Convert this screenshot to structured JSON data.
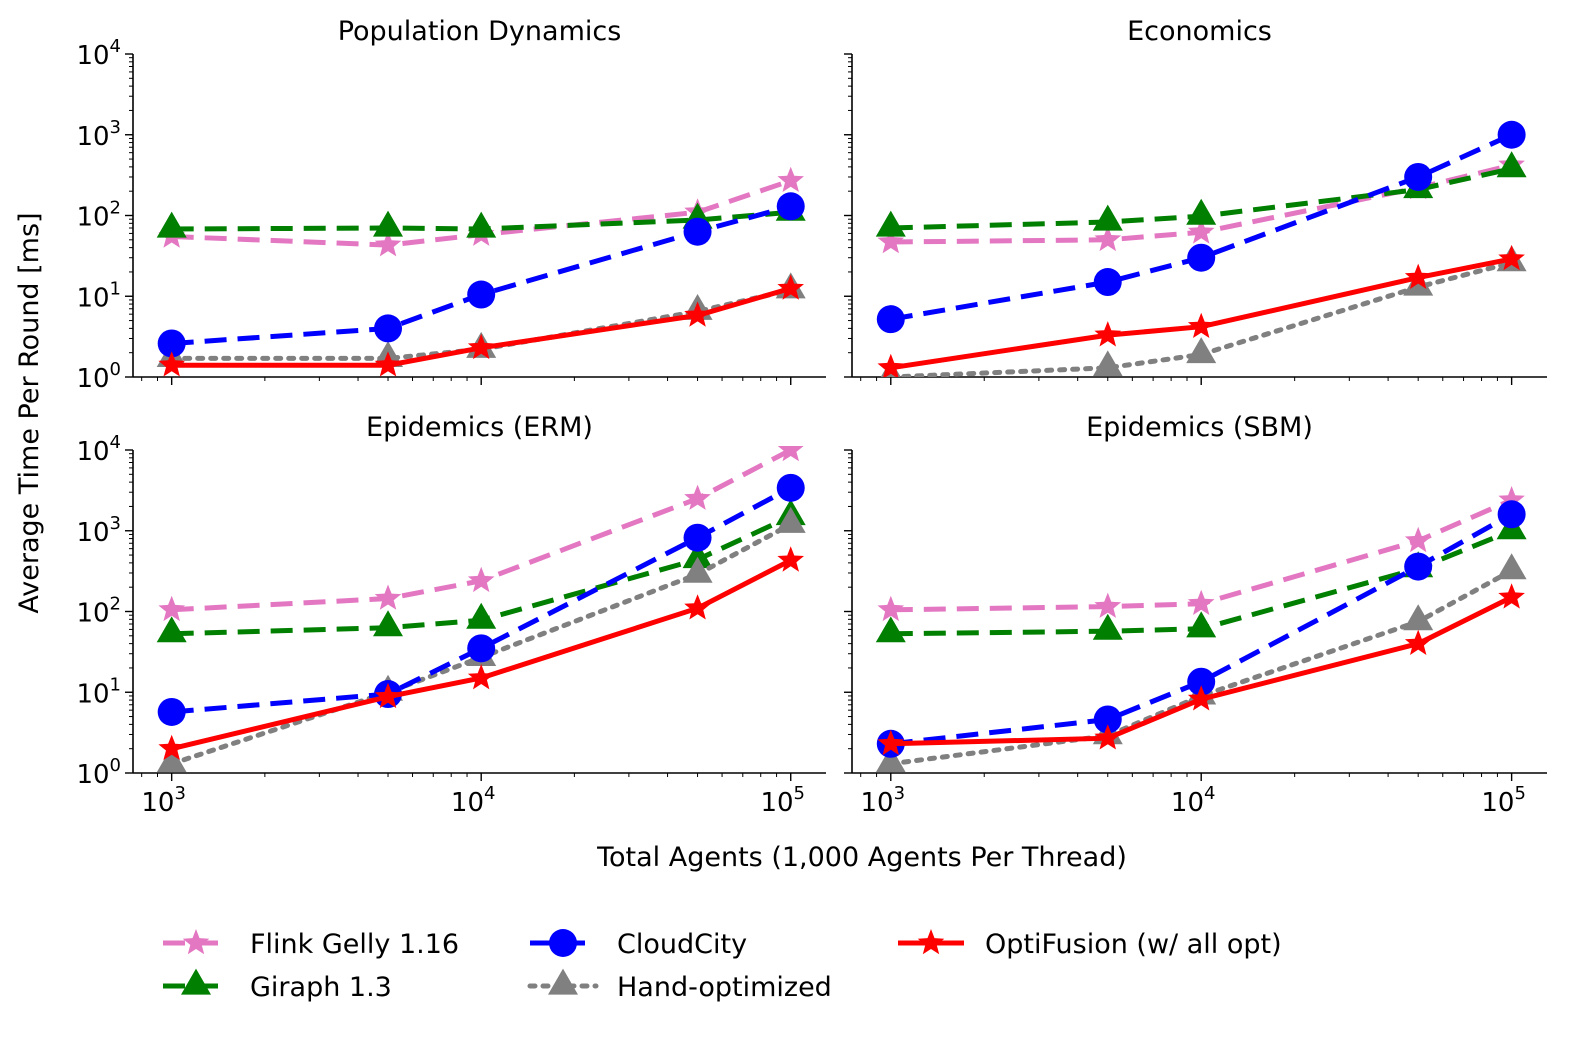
{
  "chart_data": {
    "type": "line",
    "xscale": "log",
    "yscale": "log",
    "ylabel": "Average Time Per Round [ms]",
    "xlabel": "Total Agents (1,000 Agents Per Thread)",
    "xlim": [
      750,
      130000
    ],
    "ylim": [
      1,
      10000
    ],
    "x": [
      1000,
      5000,
      10000,
      50000,
      100000
    ],
    "xticks": [
      {
        "value": 1000,
        "base": "10",
        "exp": "3"
      },
      {
        "value": 10000,
        "base": "10",
        "exp": "4"
      },
      {
        "value": 100000,
        "base": "10",
        "exp": "5"
      }
    ],
    "yticks": [
      {
        "value": 1,
        "base": "10",
        "exp": "0"
      },
      {
        "value": 10,
        "base": "10",
        "exp": "1"
      },
      {
        "value": 100,
        "base": "10",
        "exp": "2"
      },
      {
        "value": 1000,
        "base": "10",
        "exp": "3"
      },
      {
        "value": 10000,
        "base": "10",
        "exp": "4"
      }
    ],
    "legend_position": "bottom",
    "styles": {
      "Flink Gelly 1.16": {
        "color": "#e377c2",
        "dash": "dash",
        "marker": "star"
      },
      "Giraph 1.3": {
        "color": "#007f00",
        "dash": "dash",
        "marker": "triangle"
      },
      "CloudCity": {
        "color": "#0000ff",
        "dash": "dash",
        "marker": "circle"
      },
      "Hand-optimized": {
        "color": "#808080",
        "dash": "dot",
        "marker": "triangle"
      },
      "OptiFusion (w/ all opt)": {
        "color": "#ff0000",
        "dash": "solid",
        "marker": "star"
      }
    },
    "legend": [
      "Flink Gelly 1.16",
      "Giraph 1.3",
      "CloudCity",
      "Hand-optimized",
      "OptiFusion (w/ all opt)"
    ],
    "panels": [
      {
        "title": "Population Dynamics",
        "series": [
          {
            "name": "Flink Gelly 1.16",
            "values": [
              55,
              43,
              58,
              110,
              270
            ]
          },
          {
            "name": "Giraph 1.3",
            "values": [
              68,
              70,
              68,
              88,
              110
            ]
          },
          {
            "name": "Hand-optimized",
            "values": [
              1.7,
              1.7,
              2.2,
              6.5,
              12
            ]
          },
          {
            "name": "CloudCity",
            "values": [
              2.6,
              4.0,
              10.5,
              63,
              130
            ]
          },
          {
            "name": "OptiFusion (w/ all opt)",
            "values": [
              1.4,
              1.4,
              2.3,
              5.8,
              12.5
            ]
          }
        ]
      },
      {
        "title": "Economics",
        "series": [
          {
            "name": "Flink Gelly 1.16",
            "values": [
              47,
              50,
              62,
              220,
              420
            ]
          },
          {
            "name": "Giraph 1.3",
            "values": [
              70,
              83,
              98,
              210,
              380
            ]
          },
          {
            "name": "Hand-optimized",
            "values": [
              1.0,
              1.3,
              1.9,
              13,
              26
            ]
          },
          {
            "name": "CloudCity",
            "values": [
              5.2,
              15,
              30,
              300,
              1000
            ]
          },
          {
            "name": "OptiFusion (w/ all opt)",
            "values": [
              1.3,
              3.3,
              4.2,
              17,
              29
            ]
          }
        ]
      },
      {
        "title": "Epidemics (ERM)",
        "series": [
          {
            "name": "Flink Gelly 1.16",
            "values": [
              105,
              145,
              240,
              2500,
              10000
            ]
          },
          {
            "name": "Giraph 1.3",
            "values": [
              53,
              63,
              78,
              440,
              1500
            ]
          },
          {
            "name": "Hand-optimized",
            "values": [
              1.3,
              10,
              27,
              290,
              1200
            ]
          },
          {
            "name": "CloudCity",
            "values": [
              5.7,
              9.5,
              35,
              820,
              3400
            ]
          },
          {
            "name": "OptiFusion (w/ all opt)",
            "values": [
              2.0,
              8.8,
              15,
              110,
              430
            ]
          }
        ]
      },
      {
        "title": "Epidemics (SBM)",
        "series": [
          {
            "name": "Flink Gelly 1.16",
            "values": [
              105,
              115,
              125,
              750,
              2400
            ]
          },
          {
            "name": "Giraph 1.3",
            "values": [
              53,
              57,
              61,
              340,
              1000
            ]
          },
          {
            "name": "Hand-optimized",
            "values": [
              1.3,
              2.9,
              9,
              75,
              320
            ]
          },
          {
            "name": "CloudCity",
            "values": [
              2.3,
              4.6,
              13.5,
              360,
              1600
            ]
          },
          {
            "name": "OptiFusion (w/ all opt)",
            "values": [
              2.3,
              2.7,
              8.2,
              40,
              150
            ]
          }
        ]
      }
    ]
  }
}
